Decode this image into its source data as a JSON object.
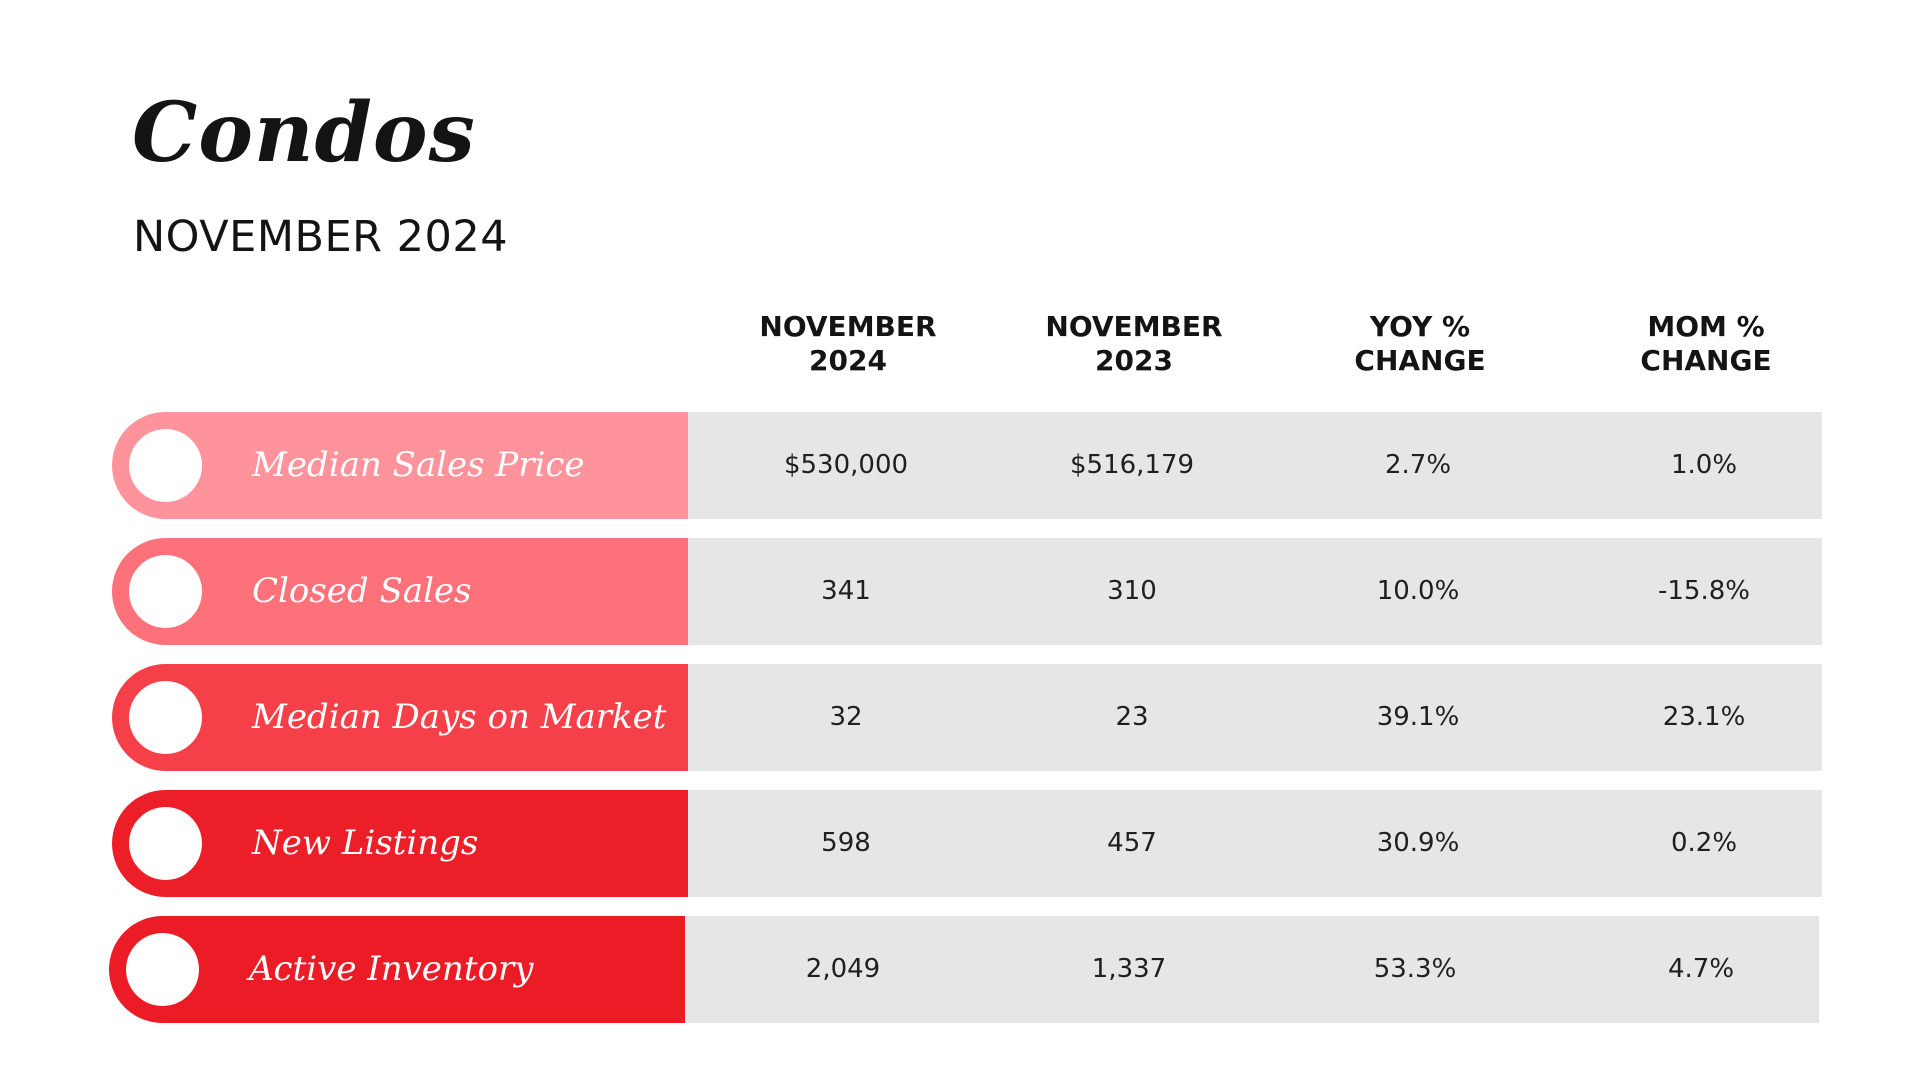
{
  "title": "Condos",
  "subtitle": "NOVEMBER 2024",
  "columns": [
    {
      "line1": "NOVEMBER",
      "line2": "2024"
    },
    {
      "line1": "NOVEMBER",
      "line2": "2023"
    },
    {
      "line1": "YOY %",
      "line2": "CHANGE"
    },
    {
      "line1": "MOM %",
      "line2": "CHANGE"
    }
  ],
  "rows": [
    {
      "label": "Median Sales Price",
      "color": "#fe939b",
      "values": [
        "$530,000",
        "$516,179",
        "2.7%",
        "1.0%"
      ]
    },
    {
      "label": "Closed Sales",
      "color": "#fd717a",
      "values": [
        "341",
        "310",
        "10.0%",
        "-15.8%"
      ]
    },
    {
      "label": "Median Days on Market",
      "color": "#f54049",
      "values": [
        "32",
        "23",
        "39.1%",
        "23.1%"
      ]
    },
    {
      "label": "New Listings",
      "color": "#ec1e28",
      "values": [
        "598",
        "457",
        "30.9%",
        "0.2%"
      ]
    },
    {
      "label": "Active Inventory",
      "color": "#eb1c26",
      "values": [
        "2,049",
        "1,337",
        "53.3%",
        "4.7%"
      ]
    }
  ]
}
